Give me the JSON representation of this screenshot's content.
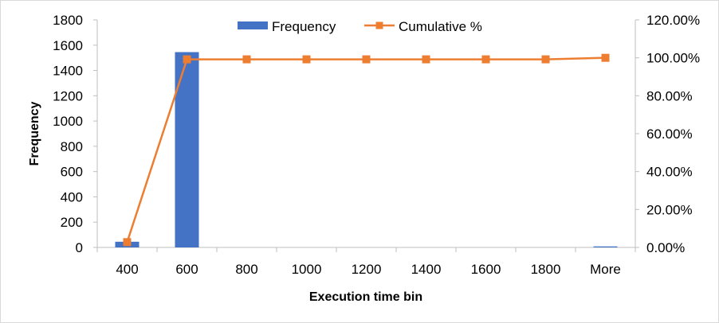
{
  "chart_data": {
    "type": "bar",
    "categories": [
      "400",
      "600",
      "800",
      "1000",
      "1200",
      "1400",
      "1600",
      "1800",
      "More"
    ],
    "series": [
      {
        "name": "Frequency",
        "type": "bar",
        "axis": "left",
        "color": "#4472C4",
        "values": [
          45,
          1545,
          0,
          0,
          0,
          0,
          0,
          0,
          8
        ]
      },
      {
        "name": "Cumulative %",
        "type": "line",
        "axis": "right",
        "color": "#ED7D31",
        "marker": "square",
        "values": [
          2.8,
          99.2,
          99.2,
          99.2,
          99.2,
          99.2,
          99.2,
          99.2,
          100.0
        ]
      }
    ],
    "xlabel": "Execution time bin",
    "ylabel": "Frequency",
    "ylim": [
      0,
      1800
    ],
    "y_ticks": [
      "0",
      "200",
      "400",
      "600",
      "800",
      "1000",
      "1200",
      "1400",
      "1600",
      "1800"
    ],
    "y2lim": [
      0,
      120
    ],
    "y2_ticks": [
      "0.00%",
      "20.00%",
      "40.00%",
      "60.00%",
      "80.00%",
      "100.00%",
      "120.00%"
    ],
    "grid": false,
    "legend_position": "top-center"
  }
}
